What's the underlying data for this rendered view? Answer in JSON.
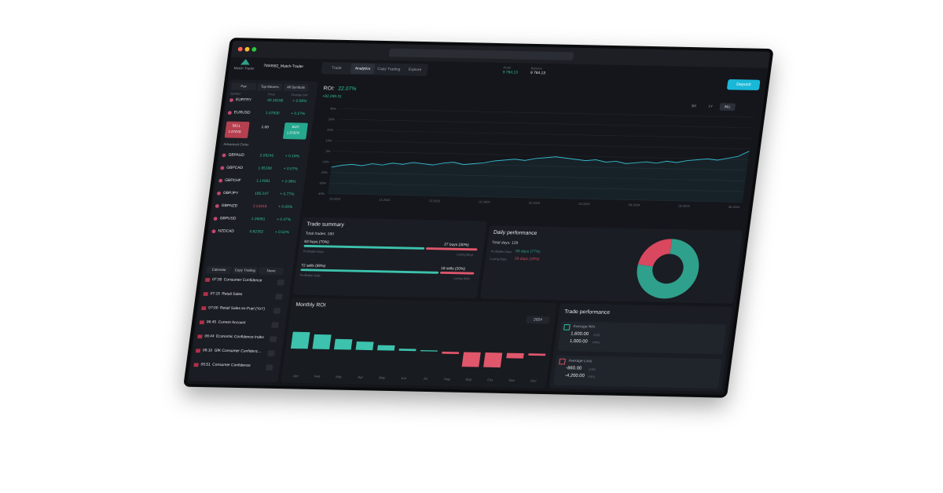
{
  "header": {
    "brand": "Match-Trader",
    "account": "7934582_Match-Trader",
    "tabs": [
      "Trade",
      "Analytics",
      "Copy Trading",
      "Explore"
    ],
    "profit_label": "Profit",
    "profit": "9 784.13",
    "balance_label": "Balance",
    "balance": "9 784.13",
    "deposit": "Deposit"
  },
  "watchlist": {
    "tabs": [
      "Fav",
      "Top Movers",
      "All Symbols"
    ],
    "columns": [
      "Symbol",
      "Price",
      "Change 24h"
    ],
    "rows": [
      [
        "EURTRY",
        "40.18166",
        "+ 0.58%"
      ],
      [
        "EURUSD",
        "1.07830",
        "+ 0.27%"
      ],
      [
        "GBPAUD",
        "2.05240",
        "+ 0.19%"
      ],
      [
        "GBPCAD",
        "1.65160",
        "+ 0.07%"
      ],
      [
        "GBPCHF",
        "1.14091",
        "+ 0.38%"
      ],
      [
        "GBPJPY",
        "185.237",
        "+ 0.77%"
      ],
      [
        "GBPNZD",
        "2.21016",
        "+ 0.05%"
      ],
      [
        "GBPUSD",
        "1.26081",
        "+ 0.47%"
      ],
      [
        "NZDCAD",
        "0.82352",
        "+ 0.52%"
      ]
    ]
  },
  "order": {
    "sell": "SELL",
    "sell_price": "1.07678",
    "buy": "BUY",
    "buy_price": "1.07879",
    "volume": "1.00",
    "advanced": "Advanced Order"
  },
  "calendar": {
    "tabs": [
      "Calendar",
      "Copy Trading",
      "News"
    ],
    "events": [
      [
        "07:35",
        "Consumer Confidence"
      ],
      [
        "07:15",
        "Retail Sales"
      ],
      [
        "07:00",
        "Retail Sales ex-Fuel (YoY)"
      ],
      [
        "06:45",
        "Current Account"
      ],
      [
        "06:44",
        "Economic Confidence Index"
      ],
      [
        "06:10",
        "GfK Consumer Confidenc..."
      ],
      [
        "05:51",
        "Consumer Confidence"
      ]
    ]
  },
  "roi": {
    "label": "ROI:",
    "value": "22.07%",
    "pnl": "+82,290.31",
    "ranges": [
      "3M",
      "1Y",
      "ALL"
    ],
    "ylim": [
      -40,
      40
    ],
    "yticks": [
      {
        "value": 40,
        "label": "40%"
      },
      {
        "value": 30,
        "label": "30%"
      },
      {
        "value": 20,
        "label": "20%"
      },
      {
        "value": 10,
        "label": "10%"
      },
      {
        "value": 0,
        "label": "0%"
      },
      {
        "value": -10,
        "label": "-10%"
      },
      {
        "value": -20,
        "label": "-20%"
      },
      {
        "value": -30,
        "label": "-30%"
      },
      {
        "value": -40,
        "label": "-40%"
      }
    ],
    "xlabels": [
      "10.2023",
      "11.2023",
      "12.2023",
      "01.2024",
      "02.2024",
      "03.2024",
      "04.2024",
      "05.2024",
      "06.2024"
    ],
    "values": [
      -15,
      -13,
      -12,
      -13,
      -11,
      -12,
      -10,
      -11,
      -9,
      -10,
      -11,
      -9,
      -8,
      -10,
      -9,
      -8,
      -6,
      -5,
      -4,
      -5,
      -3,
      -2,
      -1,
      -2,
      -3,
      -4,
      -3,
      -5,
      -4,
      -6,
      -5,
      -4,
      -5,
      -3,
      -4,
      -2,
      -1,
      0,
      -1,
      1,
      3,
      8
    ]
  },
  "trade_summary": {
    "title": "Trade summary",
    "total": "Total trades: 180",
    "rows": [
      {
        "win_label": "63 buys (70%)",
        "win_pct": 70,
        "win_caption": "Profitable Buys",
        "loss_label": "27 buys (30%)",
        "loss_pct": 30,
        "loss_caption": "Losing Buys"
      },
      {
        "win_label": "72 sells (80%)",
        "win_pct": 80,
        "win_caption": "Profitable Sells",
        "loss_label": "18 sells (20%)",
        "loss_pct": 20,
        "loss_caption": "Losing Sells"
      }
    ]
  },
  "daily": {
    "title": "Daily performance",
    "total": "Total days: 128",
    "rows": [
      {
        "label": "Profitable Days",
        "value": "99 days (77%)",
        "pct": 77,
        "color": "#2fa08c"
      },
      {
        "label": "Losing Days",
        "value": "29 days (23%)",
        "pct": 23,
        "color": "#d9485f"
      }
    ]
  },
  "monthly": {
    "title": "Monthly ROI",
    "year": "2024",
    "months": [
      "Jan",
      "Feb",
      "Mar",
      "Apr",
      "May",
      "Jun",
      "Jul",
      "Aug",
      "Sep",
      "Oct",
      "Nov",
      "Dec"
    ],
    "values": [
      8,
      7,
      5,
      4,
      2.5,
      1,
      0.5,
      -1,
      -7,
      -7,
      -2.5,
      -1
    ],
    "ylim": [
      -10,
      10
    ]
  },
  "trade_performance": {
    "title": "Trade performance",
    "cards": [
      {
        "title": "Average Win",
        "lines": [
          [
            "1,600.00",
            "USD"
          ],
          [
            "1,000.00",
            "PIPS"
          ]
        ]
      },
      {
        "title": "Average Loss",
        "lines": [
          [
            "-860.00",
            "USD"
          ],
          [
            "-4,200.00",
            "PIPS"
          ]
        ]
      }
    ]
  }
}
